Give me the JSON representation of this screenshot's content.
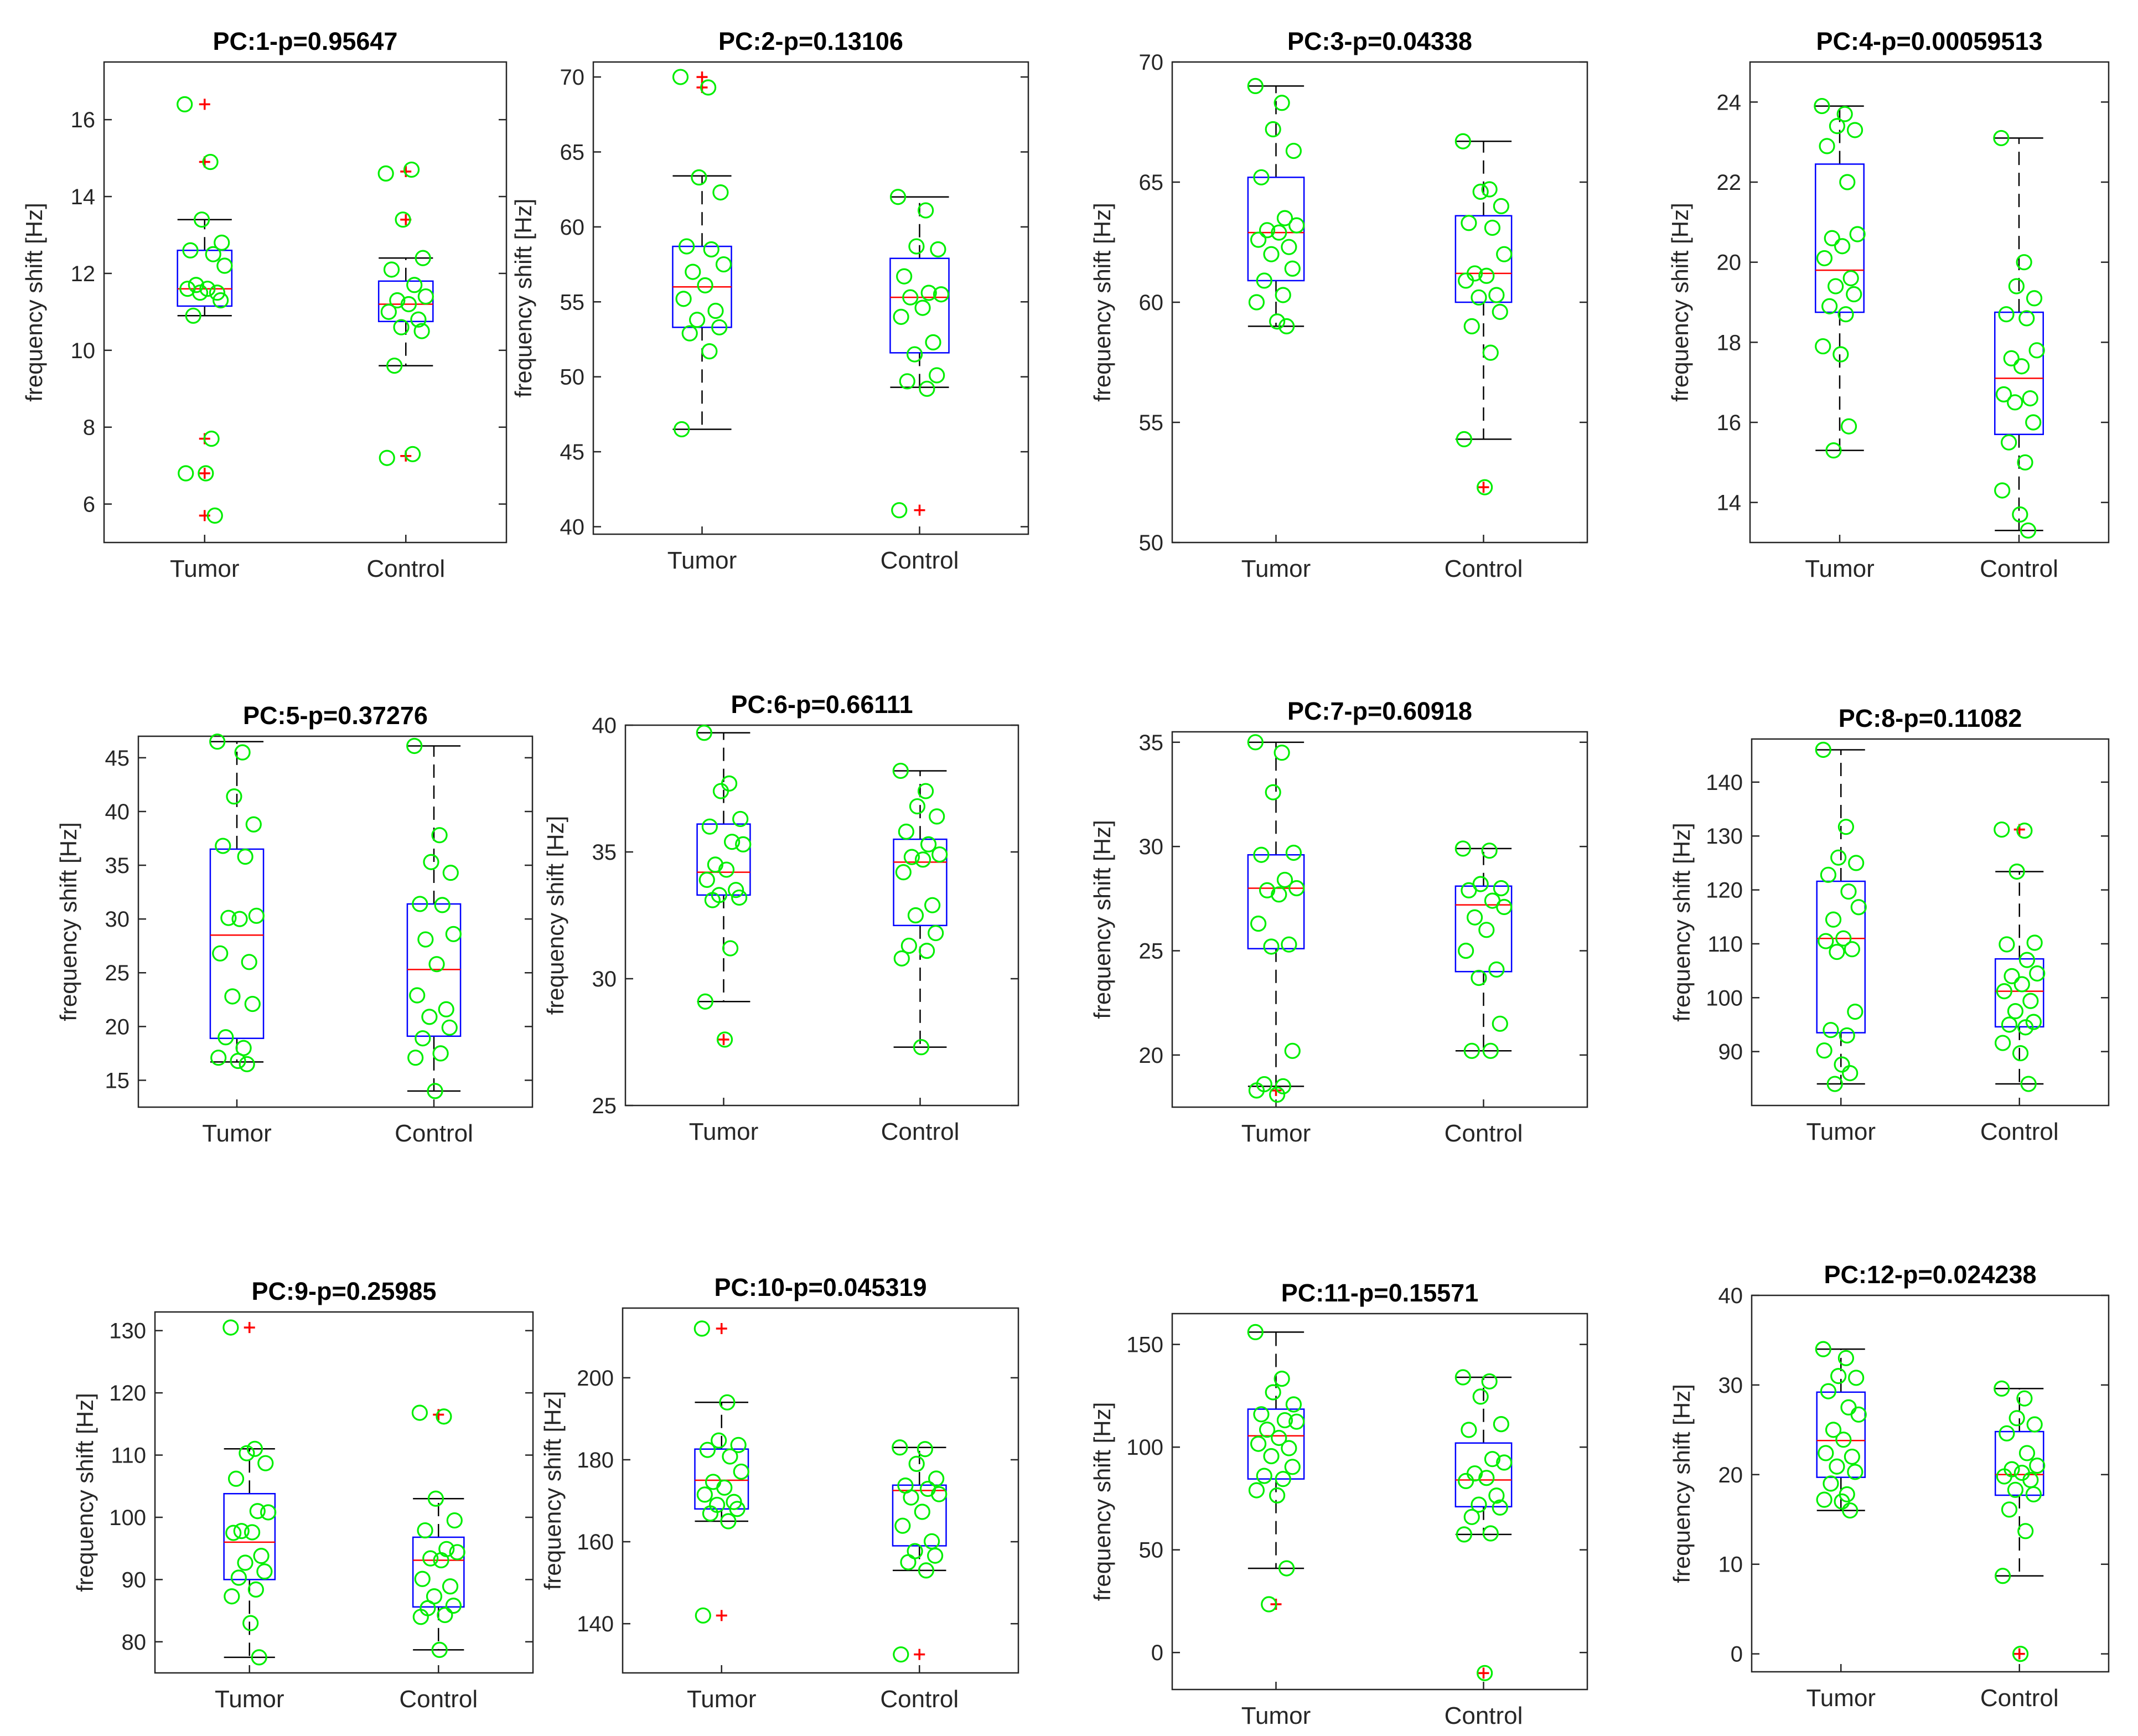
{
  "colors": {
    "box": "#0000ff",
    "median": "#ff0000",
    "outlier": "#ff0000",
    "whisker": "#000000",
    "point": "#00ee00",
    "axis": "#262626"
  },
  "chart_data": [
    {
      "type": "box",
      "title": "PC:1-p=0.95647",
      "ylabel": "frequency shift [Hz]",
      "categories": [
        "Tumor",
        "Control"
      ],
      "ylim": [
        5,
        17.5
      ],
      "yticks": [
        6,
        8,
        10,
        12,
        14,
        16
      ],
      "series": [
        {
          "name": "Tumor",
          "q1": 11.15,
          "median": 11.6,
          "q3": 12.6,
          "whisker_low": 10.9,
          "whisker_high": 13.4,
          "outliers": [
            16.4,
            14.9,
            7.7,
            6.8,
            5.7
          ],
          "points": [
            16.4,
            14.9,
            13.4,
            12.8,
            12.6,
            12.5,
            12.2,
            11.7,
            11.6,
            11.6,
            11.5,
            11.5,
            11.3,
            10.9,
            7.7,
            6.8,
            6.8,
            5.7
          ]
        },
        {
          "name": "Control",
          "q1": 10.75,
          "median": 11.2,
          "q3": 11.8,
          "whisker_low": 9.6,
          "whisker_high": 12.4,
          "outliers": [
            14.65,
            13.4,
            7.25
          ],
          "points": [
            14.6,
            14.7,
            13.4,
            12.4,
            12.1,
            11.7,
            11.4,
            11.3,
            11.2,
            11.0,
            10.8,
            10.6,
            10.5,
            9.6,
            7.3,
            7.2
          ]
        }
      ]
    },
    {
      "type": "box",
      "title": "PC:2-p=0.13106",
      "ylabel": "frequency shift [Hz]",
      "categories": [
        "Tumor",
        "Control"
      ],
      "ylim": [
        39.5,
        71
      ],
      "yticks": [
        40,
        45,
        50,
        55,
        60,
        65,
        70
      ],
      "series": [
        {
          "name": "Tumor",
          "q1": 53.3,
          "median": 56.0,
          "q3": 58.7,
          "whisker_low": 46.5,
          "whisker_high": 63.4,
          "outliers": [
            70.0,
            69.3
          ],
          "points": [
            70.0,
            69.3,
            63.3,
            62.3,
            58.7,
            58.5,
            57.5,
            57.0,
            56.1,
            55.2,
            54.4,
            53.8,
            53.3,
            52.9,
            51.7,
            46.5
          ]
        },
        {
          "name": "Control",
          "q1": 51.6,
          "median": 55.3,
          "q3": 57.9,
          "whisker_low": 49.3,
          "whisker_high": 62.0,
          "outliers": [
            41.1
          ],
          "points": [
            62.0,
            61.1,
            58.7,
            58.5,
            56.7,
            55.6,
            55.5,
            55.3,
            54.6,
            54.0,
            52.3,
            51.5,
            50.1,
            49.7,
            49.2,
            41.1
          ]
        }
      ]
    },
    {
      "type": "box",
      "title": "PC:3-p=0.04338",
      "ylabel": "frequency shift [Hz]",
      "categories": [
        "Tumor",
        "Control"
      ],
      "ylim": [
        50,
        70
      ],
      "yticks": [
        50,
        55,
        60,
        65,
        70
      ],
      "series": [
        {
          "name": "Tumor",
          "q1": 60.9,
          "median": 62.9,
          "q3": 65.2,
          "whisker_low": 59.0,
          "whisker_high": 69.0,
          "outliers": [],
          "points": [
            69.0,
            68.3,
            67.2,
            66.3,
            65.2,
            63.5,
            63.2,
            63.0,
            62.9,
            62.6,
            62.3,
            62.0,
            61.4,
            60.9,
            60.3,
            60.0,
            59.2,
            59.0
          ]
        },
        {
          "name": "Control",
          "q1": 60.0,
          "median": 61.2,
          "q3": 63.6,
          "whisker_low": 54.3,
          "whisker_high": 66.7,
          "outliers": [
            52.3
          ],
          "points": [
            66.7,
            64.7,
            64.6,
            64.0,
            63.3,
            63.1,
            62.0,
            61.2,
            61.1,
            60.9,
            60.3,
            60.2,
            59.6,
            59.0,
            57.9,
            54.3,
            52.3
          ]
        }
      ]
    },
    {
      "type": "box",
      "title": "PC:4-p=0.00059513",
      "ylabel": "frequency shift [Hz]",
      "categories": [
        "Tumor",
        "Control"
      ],
      "ylim": [
        13,
        25
      ],
      "yticks": [
        14,
        16,
        18,
        20,
        22,
        24
      ],
      "series": [
        {
          "name": "Tumor",
          "q1": 18.75,
          "median": 19.8,
          "q3": 22.45,
          "whisker_low": 15.3,
          "whisker_high": 23.9,
          "outliers": [],
          "points": [
            23.9,
            23.7,
            23.4,
            23.3,
            22.9,
            22.0,
            20.7,
            20.6,
            20.4,
            20.1,
            19.6,
            19.4,
            19.2,
            18.9,
            18.7,
            17.9,
            17.7,
            15.9,
            15.3
          ]
        },
        {
          "name": "Control",
          "q1": 15.7,
          "median": 17.1,
          "q3": 18.75,
          "whisker_low": 13.3,
          "whisker_high": 23.1,
          "outliers": [],
          "points": [
            23.1,
            20.0,
            19.4,
            19.1,
            18.7,
            18.6,
            17.8,
            17.6,
            17.4,
            16.7,
            16.6,
            16.5,
            16.0,
            15.5,
            15.0,
            14.3,
            13.7,
            13.3
          ]
        }
      ]
    },
    {
      "type": "box",
      "title": "PC:5-p=0.37276",
      "ylabel": "frequency shift [Hz]",
      "categories": [
        "Tumor",
        "Control"
      ],
      "ylim": [
        12.5,
        47
      ],
      "yticks": [
        15,
        20,
        25,
        30,
        35,
        40,
        45
      ],
      "series": [
        {
          "name": "Tumor",
          "q1": 18.9,
          "median": 28.5,
          "q3": 36.5,
          "whisker_low": 16.7,
          "whisker_high": 46.5,
          "outliers": [],
          "points": [
            46.5,
            45.5,
            41.4,
            38.8,
            36.8,
            35.8,
            30.3,
            30.1,
            30.0,
            26.8,
            26.0,
            22.8,
            22.1,
            19.0,
            18.0,
            17.1,
            16.8,
            16.5
          ]
        },
        {
          "name": "Control",
          "q1": 19.1,
          "median": 25.3,
          "q3": 31.4,
          "whisker_low": 14.0,
          "whisker_high": 46.1,
          "outliers": [],
          "points": [
            46.1,
            37.8,
            35.3,
            34.3,
            31.4,
            31.3,
            28.6,
            28.1,
            25.8,
            22.9,
            21.6,
            20.9,
            19.9,
            18.9,
            17.5,
            17.1,
            14.0
          ]
        }
      ]
    },
    {
      "type": "box",
      "title": "PC:6-p=0.66111",
      "ylabel": "frequency shift [Hz]",
      "categories": [
        "Tumor",
        "Control"
      ],
      "ylim": [
        25,
        40
      ],
      "yticks": [
        25,
        30,
        35,
        40
      ],
      "series": [
        {
          "name": "Tumor",
          "q1": 33.3,
          "median": 34.2,
          "q3": 36.1,
          "whisker_low": 29.1,
          "whisker_high": 39.7,
          "outliers": [
            27.6
          ],
          "points": [
            39.7,
            37.7,
            37.4,
            36.3,
            36.0,
            35.4,
            35.3,
            34.5,
            34.3,
            33.9,
            33.5,
            33.3,
            33.2,
            33.1,
            31.2,
            29.1,
            27.6
          ]
        },
        {
          "name": "Control",
          "q1": 32.1,
          "median": 34.6,
          "q3": 35.5,
          "whisker_low": 27.3,
          "whisker_high": 38.2,
          "outliers": [],
          "points": [
            38.2,
            37.4,
            36.8,
            36.4,
            35.8,
            35.3,
            34.9,
            34.8,
            34.7,
            34.2,
            32.9,
            32.5,
            31.8,
            31.3,
            31.1,
            30.8,
            27.3
          ]
        }
      ]
    },
    {
      "type": "box",
      "title": "PC:7-p=0.60918",
      "ylabel": "frequency shift [Hz]",
      "categories": [
        "Tumor",
        "Control"
      ],
      "ylim": [
        17.5,
        35.5
      ],
      "yticks": [
        20,
        25,
        30,
        35
      ],
      "series": [
        {
          "name": "Tumor",
          "q1": 25.1,
          "median": 28.0,
          "q3": 29.6,
          "whisker_low": 18.5,
          "whisker_high": 35.0,
          "outliers": [
            18.3
          ],
          "points": [
            35.0,
            34.5,
            32.6,
            29.7,
            29.6,
            28.4,
            28.0,
            27.9,
            27.7,
            26.3,
            25.3,
            25.2,
            20.2,
            18.6,
            18.5,
            18.3,
            18.1
          ]
        },
        {
          "name": "Control",
          "q1": 24.0,
          "median": 27.2,
          "q3": 28.1,
          "whisker_low": 20.2,
          "whisker_high": 29.9,
          "outliers": [],
          "points": [
            29.9,
            29.8,
            28.2,
            28.0,
            27.9,
            27.4,
            27.1,
            26.6,
            26.0,
            25.0,
            24.1,
            23.7,
            21.5,
            20.2,
            20.2
          ]
        }
      ]
    },
    {
      "type": "box",
      "title": "PC:8-p=0.11082",
      "ylabel": "frequency shift [Hz]",
      "categories": [
        "Tumor",
        "Control"
      ],
      "ylim": [
        80,
        148
      ],
      "yticks": [
        90,
        100,
        110,
        120,
        130,
        140
      ],
      "series": [
        {
          "name": "Tumor",
          "q1": 93.5,
          "median": 111.0,
          "q3": 121.6,
          "whisker_low": 84.0,
          "whisker_high": 146.0,
          "outliers": [],
          "points": [
            146.0,
            131.7,
            126.0,
            125.0,
            122.8,
            119.7,
            116.8,
            114.5,
            111.0,
            110.5,
            109.0,
            108.5,
            97.4,
            94.0,
            93.0,
            90.2,
            87.6,
            86.0,
            84.0
          ]
        },
        {
          "name": "Control",
          "q1": 94.6,
          "median": 101.2,
          "q3": 107.2,
          "whisker_low": 84.0,
          "whisker_high": 123.4,
          "outliers": [
            131.2
          ],
          "points": [
            131.2,
            131.0,
            123.4,
            110.2,
            109.9,
            107.0,
            104.5,
            104.0,
            102.5,
            101.2,
            99.4,
            97.5,
            95.5,
            95.0,
            94.5,
            91.6,
            89.7,
            84.0
          ]
        }
      ]
    },
    {
      "type": "box",
      "title": "PC:9-p=0.25985",
      "ylabel": "frequency shift [Hz]",
      "categories": [
        "Tumor",
        "Control"
      ],
      "ylim": [
        75,
        133
      ],
      "yticks": [
        80,
        90,
        100,
        110,
        120,
        130
      ],
      "series": [
        {
          "name": "Tumor",
          "q1": 90.0,
          "median": 96.0,
          "q3": 103.8,
          "whisker_low": 77.5,
          "whisker_high": 111.0,
          "outliers": [
            130.5
          ],
          "points": [
            130.5,
            111.0,
            110.3,
            108.7,
            106.2,
            101.0,
            100.8,
            97.8,
            97.6,
            97.5,
            93.8,
            92.7,
            91.3,
            90.3,
            88.4,
            87.3,
            83.0,
            77.5
          ]
        },
        {
          "name": "Control",
          "q1": 85.6,
          "median": 93.1,
          "q3": 96.8,
          "whisker_low": 78.7,
          "whisker_high": 103.0,
          "outliers": [
            116.5
          ],
          "points": [
            116.8,
            116.2,
            103.0,
            99.5,
            97.9,
            94.9,
            94.4,
            93.4,
            93.1,
            90.1,
            88.9,
            87.3,
            85.8,
            85.4,
            84.3,
            84.0,
            78.7
          ]
        }
      ]
    },
    {
      "type": "box",
      "title": "PC:10-p=0.045319",
      "ylabel": "frequency shift [Hz]",
      "categories": [
        "Tumor",
        "Control"
      ],
      "ylim": [
        128,
        217
      ],
      "yticks": [
        140,
        160,
        180,
        200
      ],
      "series": [
        {
          "name": "Tumor",
          "q1": 168.0,
          "median": 175.0,
          "q3": 182.6,
          "whisker_low": 165.0,
          "whisker_high": 194.0,
          "outliers": [
            212.0,
            142.0
          ],
          "points": [
            212.0,
            194.0,
            184.7,
            183.6,
            182.4,
            180.8,
            177.1,
            174.6,
            173.2,
            171.5,
            169.7,
            169.0,
            168.0,
            166.9,
            165.0,
            142.0
          ]
        },
        {
          "name": "Control",
          "q1": 159.0,
          "median": 172.5,
          "q3": 173.8,
          "whisker_low": 153.0,
          "whisker_high": 183.0,
          "outliers": [
            132.5
          ],
          "points": [
            183.0,
            182.6,
            179.0,
            175.4,
            173.7,
            172.9,
            171.6,
            170.8,
            167.3,
            163.9,
            160.1,
            157.7,
            156.6,
            155.0,
            153.0,
            132.5
          ]
        }
      ]
    },
    {
      "type": "box",
      "title": "PC:11-p=0.15571",
      "ylabel": "frequency shift [Hz]",
      "categories": [
        "Tumor",
        "Control"
      ],
      "ylim": [
        -18,
        165
      ],
      "yticks": [
        0,
        50,
        100,
        150
      ],
      "series": [
        {
          "name": "Tumor",
          "q1": 84.5,
          "median": 105.5,
          "q3": 118.5,
          "whisker_low": 41.0,
          "whisker_high": 156.0,
          "outliers": [
            23.5
          ],
          "points": [
            156.0,
            133.3,
            126.7,
            120.8,
            116.0,
            113.1,
            112.4,
            108.5,
            104.5,
            101.6,
            99.5,
            95.6,
            90.4,
            86.0,
            84.5,
            79.0,
            76.5,
            41.0,
            23.5
          ]
        },
        {
          "name": "Control",
          "q1": 71.0,
          "median": 84.0,
          "q3": 102.0,
          "whisker_low": 57.5,
          "whisker_high": 134.0,
          "outliers": [
            -10.0
          ],
          "points": [
            134.0,
            132.0,
            124.6,
            111.2,
            108.4,
            94.2,
            92.5,
            87.2,
            85.0,
            83.5,
            76.4,
            72.0,
            70.6,
            66.0,
            58.0,
            57.5,
            -10.0
          ]
        }
      ]
    },
    {
      "type": "box",
      "title": "PC:12-p=0.024238",
      "ylabel": "frequency shift [Hz]",
      "categories": [
        "Tumor",
        "Control"
      ],
      "ylim": [
        -2,
        40
      ],
      "yticks": [
        0,
        10,
        20,
        30,
        40
      ],
      "series": [
        {
          "name": "Tumor",
          "q1": 19.7,
          "median": 23.8,
          "q3": 29.2,
          "whisker_low": 16.0,
          "whisker_high": 34.0,
          "outliers": [],
          "points": [
            34.0,
            33.0,
            31.0,
            30.8,
            29.3,
            27.5,
            26.7,
            25.0,
            23.9,
            22.4,
            22.0,
            20.9,
            20.3,
            19.0,
            17.8,
            17.2,
            17.0,
            16.0
          ]
        },
        {
          "name": "Control",
          "q1": 17.7,
          "median": 20.0,
          "q3": 24.8,
          "whisker_low": 8.7,
          "whisker_high": 29.6,
          "outliers": [
            0.0
          ],
          "points": [
            29.6,
            28.5,
            26.3,
            25.6,
            24.6,
            22.4,
            21.0,
            20.6,
            20.2,
            19.8,
            19.4,
            18.3,
            17.8,
            16.1,
            13.7,
            8.7,
            0.0
          ]
        }
      ]
    }
  ]
}
